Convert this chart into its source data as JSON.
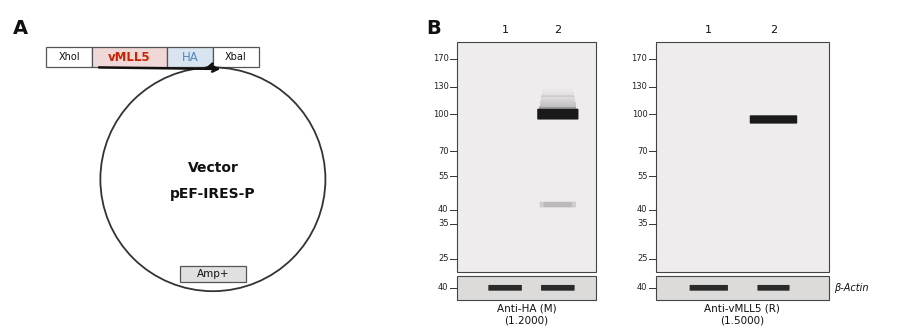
{
  "panel_A": {
    "label": "A",
    "vector_name_line1": "Vector",
    "vector_name_line2": "pEF-IRES-P",
    "amp_label": "Amp+",
    "xhol_label": "XhoI",
    "xbal_label": "XbaI",
    "vmll5_label": "vMLL5",
    "ha_label": "HA",
    "vmll5_color": "#cc2200",
    "ha_color": "#5588bb",
    "vmll5_bg": "#f0d8d8",
    "ha_bg": "#d8e4f0",
    "box_bg": "#e0e0e0",
    "box_border": "#555555"
  },
  "panel_B": {
    "label": "B",
    "blot1": {
      "lane_labels": [
        "1",
        "2"
      ],
      "mw_markers": [
        170,
        130,
        100,
        70,
        55,
        40,
        35,
        25
      ],
      "xlabel_line1": "Anti-HA (M)",
      "xlabel_line2": "(1.2000)"
    },
    "blot2": {
      "lane_labels": [
        "1",
        "2"
      ],
      "mw_markers": [
        170,
        130,
        100,
        70,
        55,
        40,
        35,
        25
      ],
      "actin_label": "β-Actin",
      "xlabel_line1": "Anti-vMLL5 (R)",
      "xlabel_line2": "(1.5000)"
    }
  },
  "bg_color": "#ffffff",
  "gel_bg_light": "#f0eeee",
  "gel_actin_bg": "#e0dddd",
  "band_dark": "#1a1a1a",
  "band_mid": "#888888",
  "band_light": "#cccccc"
}
